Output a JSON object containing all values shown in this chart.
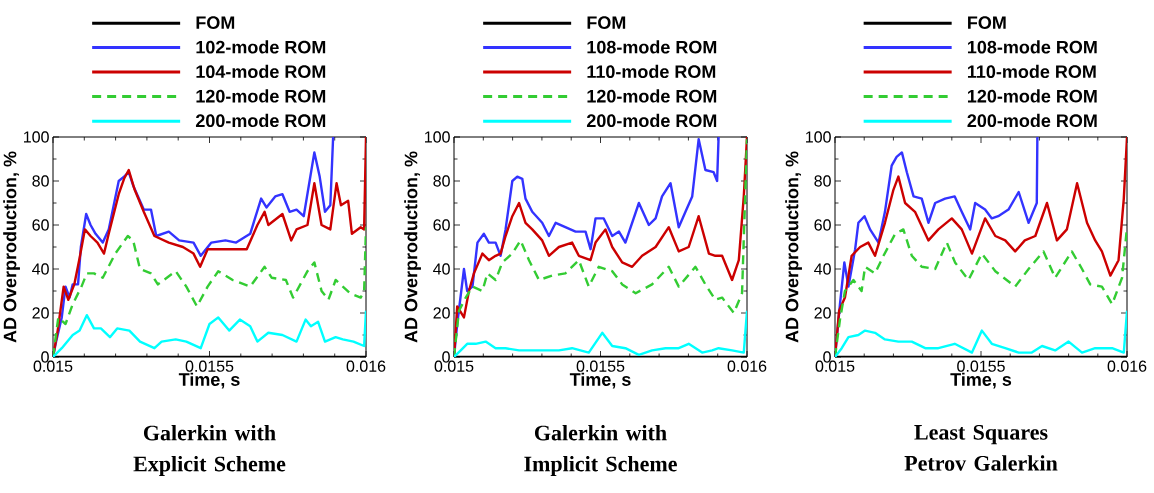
{
  "chart_data": [
    {
      "type": "line",
      "title": "Galerkin with Explicit Scheme",
      "xlabel": "Time, s",
      "ylabel": "AD Overproduction, %",
      "xlim": [
        0.015,
        0.016
      ],
      "ylim": [
        0,
        100
      ],
      "xticks": [
        0.015,
        0.0155,
        0.016
      ],
      "yticks": [
        0,
        20,
        40,
        60,
        80,
        100
      ],
      "legend": "top",
      "series": [
        {
          "name": "FOM",
          "color": "#000000",
          "line_style": "solid",
          "x": [
            0.015,
            0.016
          ],
          "values": [
            0,
            0
          ]
        },
        {
          "name": "102-mode ROM",
          "color": "#3333ff",
          "line_style": "solid",
          "x": [
            0.015,
            0.01501,
            0.015028,
            0.01504,
            0.015053,
            0.015063,
            0.01508,
            0.015089,
            0.015106,
            0.01512,
            0.015136,
            0.015159,
            0.015178,
            0.01521,
            0.015227,
            0.015242,
            0.015256,
            0.01529,
            0.015313,
            0.01533,
            0.01537,
            0.015403,
            0.015449,
            0.015472,
            0.015506,
            0.015551,
            0.015585,
            0.01563,
            0.015665,
            0.015682,
            0.01571,
            0.015733,
            0.015756,
            0.015778,
            0.015801,
            0.015835,
            0.015852,
            0.015869,
            0.015886,
            0.015895
          ],
          "values": [
            0,
            7,
            18,
            32,
            27,
            33,
            33,
            50,
            65,
            60,
            56,
            52,
            58,
            80,
            82,
            84,
            78,
            67,
            67,
            55,
            57,
            53,
            52,
            46,
            52,
            53,
            52,
            56,
            72,
            68,
            73,
            74,
            66,
            67,
            64,
            93,
            82,
            66,
            69,
            100
          ]
        },
        {
          "name": "104-mode ROM",
          "color": "#cc0000",
          "line_style": "solid",
          "x": [
            0.015,
            0.015015,
            0.015034,
            0.015049,
            0.015068,
            0.015085,
            0.015102,
            0.01512,
            0.015142,
            0.015163,
            0.015178,
            0.01521,
            0.015227,
            0.015242,
            0.015261,
            0.01529,
            0.015324,
            0.01537,
            0.015415,
            0.015449,
            0.01547,
            0.015494,
            0.015551,
            0.015619,
            0.015653,
            0.015676,
            0.015688,
            0.015733,
            0.015761,
            0.015778,
            0.015813,
            0.015835,
            0.015858,
            0.015886,
            0.015906,
            0.01592,
            0.015943,
            0.015955,
            0.015983,
            0.015994,
            0.016
          ],
          "values": [
            0,
            12,
            32,
            26,
            33,
            45,
            58,
            55,
            52,
            47,
            56,
            74,
            81,
            85,
            76,
            66,
            55,
            52,
            50,
            47,
            41,
            49,
            49,
            49,
            60,
            66,
            60,
            65,
            53,
            58,
            60,
            79,
            60,
            58,
            79,
            69,
            71,
            56,
            59,
            58,
            100
          ]
        },
        {
          "name": "120-mode ROM",
          "color": "#33cc33",
          "line_style": "dashed",
          "x": [
            0.015,
            0.015017,
            0.01504,
            0.015063,
            0.015091,
            0.015108,
            0.015131,
            0.015159,
            0.015199,
            0.015239,
            0.015256,
            0.015278,
            0.015313,
            0.015335,
            0.015392,
            0.015426,
            0.01546,
            0.015494,
            0.015528,
            0.015574,
            0.01563,
            0.015676,
            0.015699,
            0.015744,
            0.015767,
            0.015813,
            0.015835,
            0.015858,
            0.01588,
            0.015903,
            0.015926,
            0.015949,
            0.015983,
            0.015994,
            0.016
          ],
          "values": [
            0,
            18,
            15,
            24,
            32,
            38,
            38,
            36,
            47,
            55,
            53,
            40,
            38,
            33,
            39,
            32,
            23,
            32,
            39,
            35,
            32,
            41,
            36,
            35,
            27,
            39,
            43,
            30,
            26,
            35,
            32,
            29,
            27,
            30,
            59
          ]
        },
        {
          "name": "200-mode ROM",
          "color": "#00ffff",
          "line_style": "solid",
          "x": [
            0.015,
            0.015028,
            0.015063,
            0.015085,
            0.015108,
            0.015131,
            0.015153,
            0.015182,
            0.015205,
            0.015244,
            0.015278,
            0.015324,
            0.015347,
            0.015392,
            0.015426,
            0.015472,
            0.0155,
            0.015528,
            0.015563,
            0.015597,
            0.01563,
            0.015653,
            0.015688,
            0.015733,
            0.015778,
            0.015807,
            0.015824,
            0.015847,
            0.015869,
            0.015903,
            0.015926,
            0.01596,
            0.015994,
            0.016
          ],
          "values": [
            0,
            4,
            10,
            12,
            19,
            13,
            13,
            9,
            13,
            12,
            7,
            4,
            7,
            8,
            7,
            4,
            15,
            18,
            12,
            17,
            14,
            7,
            11,
            10,
            7,
            17,
            14,
            16,
            7,
            9,
            8,
            7,
            5,
            21
          ]
        }
      ]
    },
    {
      "type": "line",
      "title": "Galerkin with Implicit Scheme",
      "xlabel": "Time, s",
      "ylabel": "AD Overproduction, %",
      "xlim": [
        0.015,
        0.016
      ],
      "ylim": [
        0,
        100
      ],
      "xticks": [
        0.015,
        0.0155,
        0.016
      ],
      "yticks": [
        0,
        20,
        40,
        60,
        80,
        100
      ],
      "legend": "top",
      "series": [
        {
          "name": "FOM",
          "color": "#000000",
          "line_style": "solid",
          "x": [
            0.015,
            0.016
          ],
          "values": [
            0,
            0
          ]
        },
        {
          "name": "108-mode ROM",
          "color": "#3333ff",
          "line_style": "solid",
          "x": [
            0.015,
            0.015011,
            0.015034,
            0.015045,
            0.015063,
            0.01508,
            0.015102,
            0.015119,
            0.015142,
            0.015159,
            0.015176,
            0.015199,
            0.015216,
            0.015233,
            0.015244,
            0.015267,
            0.015301,
            0.015324,
            0.015347,
            0.01538,
            0.015415,
            0.015449,
            0.015466,
            0.015483,
            0.015511,
            0.01554,
            0.015563,
            0.015585,
            0.015631,
            0.015665,
            0.015688,
            0.01571,
            0.015739,
            0.015767,
            0.01579,
            0.015813,
            0.015835,
            0.015858,
            0.015886,
            0.015898,
            0.015903
          ],
          "values": [
            0,
            15,
            40,
            30,
            32,
            52,
            56,
            52,
            52,
            46,
            58,
            80,
            82,
            81,
            72,
            66,
            61,
            55,
            61,
            59,
            57,
            57,
            49,
            63,
            63,
            55,
            57,
            52,
            70,
            60,
            63,
            73,
            79,
            59,
            66,
            73,
            99,
            85,
            84,
            80,
            100
          ]
        },
        {
          "name": "110-mode ROM",
          "color": "#cc0000",
          "line_style": "solid",
          "x": [
            0.015,
            0.015011,
            0.015034,
            0.015051,
            0.015068,
            0.015097,
            0.015119,
            0.015142,
            0.015159,
            0.015176,
            0.015199,
            0.015222,
            0.015244,
            0.015267,
            0.015301,
            0.015324,
            0.015358,
            0.015403,
            0.015426,
            0.015466,
            0.015483,
            0.015517,
            0.01554,
            0.015574,
            0.015608,
            0.015642,
            0.015688,
            0.015733,
            0.015767,
            0.015801,
            0.015835,
            0.01587,
            0.015892,
            0.015915,
            0.015949,
            0.015972,
            0.015989,
            0.016
          ],
          "values": [
            0,
            23,
            18,
            30,
            38,
            47,
            44,
            46,
            47,
            55,
            64,
            70,
            61,
            58,
            53,
            46,
            50,
            52,
            46,
            44,
            52,
            58,
            50,
            43,
            41,
            46,
            50,
            59,
            48,
            50,
            64,
            47,
            46,
            46,
            35,
            44,
            73,
            100
          ]
        },
        {
          "name": "120-mode ROM",
          "color": "#33cc33",
          "line_style": "dashed",
          "x": [
            0.015,
            0.015017,
            0.01504,
            0.015063,
            0.015097,
            0.015114,
            0.015142,
            0.015165,
            0.015199,
            0.015227,
            0.015256,
            0.01529,
            0.015335,
            0.01538,
            0.015426,
            0.01546,
            0.015494,
            0.01554,
            0.015574,
            0.01562,
            0.015676,
            0.015733,
            0.015767,
            0.015824,
            0.015858,
            0.015892,
            0.015915,
            0.015955,
            0.015983,
            0.016
          ],
          "values": [
            0,
            21,
            27,
            32,
            30,
            38,
            35,
            43,
            47,
            53,
            44,
            35,
            37,
            38,
            44,
            32,
            41,
            39,
            33,
            29,
            33,
            41,
            32,
            41,
            33,
            26,
            27,
            20,
            29,
            99
          ]
        },
        {
          "name": "200-mode ROM",
          "color": "#00ffff",
          "line_style": "solid",
          "x": [
            0.015,
            0.015023,
            0.015045,
            0.015074,
            0.015108,
            0.015142,
            0.015176,
            0.015222,
            0.015267,
            0.015313,
            0.015358,
            0.015403,
            0.01546,
            0.015506,
            0.01554,
            0.015585,
            0.015631,
            0.015676,
            0.015722,
            0.015767,
            0.015801,
            0.015847,
            0.015881,
            0.015903,
            0.015949,
            0.015989,
            0.016
          ],
          "values": [
            0,
            3,
            6,
            6,
            7,
            4,
            4,
            3,
            3,
            3,
            3,
            4,
            2,
            11,
            5,
            4,
            1,
            3,
            4,
            4,
            6,
            2,
            3,
            4,
            3,
            2,
            21
          ]
        }
      ]
    },
    {
      "type": "line",
      "title": "Least Squares Petrov Galerkin",
      "xlabel": "Time, s",
      "ylabel": "AD Overproduction, %",
      "xlim": [
        0.015,
        0.016
      ],
      "ylim": [
        0,
        100
      ],
      "xticks": [
        0.015,
        0.0155,
        0.016
      ],
      "yticks": [
        0,
        20,
        40,
        60,
        80,
        100
      ],
      "legend": "top",
      "series": [
        {
          "name": "FOM",
          "color": "#000000",
          "line_style": "solid",
          "x": [
            0.015,
            0.016
          ],
          "values": [
            0,
            0
          ]
        },
        {
          "name": "108-mode ROM",
          "color": "#3333ff",
          "line_style": "solid",
          "x": [
            0.015,
            0.015017,
            0.015032,
            0.015046,
            0.015069,
            0.01508,
            0.015101,
            0.01512,
            0.015149,
            0.015171,
            0.015194,
            0.015211,
            0.015229,
            0.015246,
            0.015269,
            0.015297,
            0.01532,
            0.015343,
            0.015377,
            0.01541,
            0.015434,
            0.015463,
            0.01548,
            0.015514,
            0.015537,
            0.015559,
            0.015594,
            0.015629,
            0.015663,
            0.015691,
            0.015693
          ],
          "values": [
            0,
            24,
            43,
            32,
            49,
            61,
            64,
            58,
            52,
            66,
            87,
            91,
            93,
            84,
            73,
            72,
            61,
            70,
            72,
            73,
            66,
            58,
            70,
            67,
            63,
            64,
            67,
            75,
            61,
            70,
            100
          ]
        },
        {
          "name": "110-mode ROM",
          "color": "#cc0000",
          "line_style": "solid",
          "x": [
            0.015,
            0.015014,
            0.015034,
            0.015057,
            0.015086,
            0.015114,
            0.015137,
            0.015171,
            0.0152,
            0.015217,
            0.01524,
            0.015274,
            0.01532,
            0.015354,
            0.0154,
            0.015434,
            0.015469,
            0.015514,
            0.015549,
            0.015583,
            0.015617,
            0.01565,
            0.015686,
            0.015726,
            0.01576,
            0.015794,
            0.015829,
            0.015863,
            0.015891,
            0.015914,
            0.015943,
            0.015971,
            0.015989,
            0.016
          ],
          "values": [
            0,
            21,
            27,
            46,
            50,
            52,
            46,
            61,
            76,
            82,
            70,
            66,
            53,
            58,
            63,
            58,
            47,
            63,
            55,
            53,
            48,
            53,
            55,
            70,
            53,
            58,
            79,
            61,
            53,
            48,
            37,
            44,
            72,
            100
          ]
        },
        {
          "name": "120-mode ROM",
          "color": "#33cc33",
          "line_style": "dashed",
          "x": [
            0.015,
            0.015017,
            0.015034,
            0.015063,
            0.015091,
            0.015103,
            0.015137,
            0.015166,
            0.015206,
            0.015234,
            0.015263,
            0.015297,
            0.015343,
            0.015383,
            0.015411,
            0.015457,
            0.015503,
            0.015549,
            0.015617,
            0.015663,
            0.015714,
            0.015754,
            0.015811,
            0.015846,
            0.015874,
            0.015914,
            0.015949,
            0.015983,
            0.016
          ],
          "values": [
            0,
            17,
            30,
            35,
            30,
            41,
            38,
            46,
            56,
            58,
            46,
            41,
            40,
            52,
            43,
            35,
            47,
            39,
            32,
            40,
            48,
            36,
            48,
            40,
            33,
            32,
            24,
            36,
            59
          ]
        },
        {
          "name": "200-mode ROM",
          "color": "#00ffff",
          "line_style": "solid",
          "x": [
            0.015,
            0.015023,
            0.015046,
            0.01508,
            0.015103,
            0.015137,
            0.015171,
            0.015217,
            0.015263,
            0.015309,
            0.015354,
            0.01541,
            0.015469,
            0.015503,
            0.015537,
            0.015583,
            0.015629,
            0.015674,
            0.015709,
            0.015754,
            0.0158,
            0.015846,
            0.015891,
            0.015949,
            0.015989,
            0.016
          ],
          "values": [
            0,
            4,
            9,
            10,
            12,
            11,
            8,
            7,
            7,
            4,
            4,
            6,
            2,
            12,
            6,
            4,
            2,
            2,
            5,
            3,
            7,
            2,
            4,
            4,
            2,
            21
          ]
        }
      ]
    }
  ]
}
